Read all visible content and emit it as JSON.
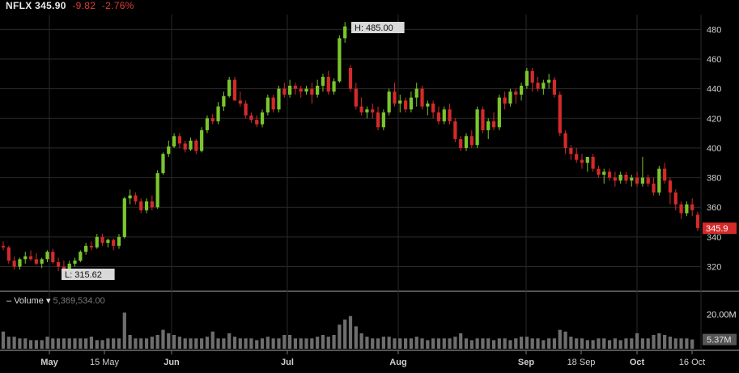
{
  "header": {
    "symbol": "NFLX",
    "price": "345.90",
    "change": "-9.82",
    "change_pct": "-2.76%"
  },
  "volume_header": {
    "label": "Volume",
    "value": "5,369,534.00"
  },
  "colors": {
    "up": "#7bc62d",
    "down": "#d42a2a",
    "grid": "#2a2a2a",
    "volume": "#6e6e6e",
    "label_bg": "#d9d9d9",
    "last_bg": "#d42a2a"
  },
  "chart_data": {
    "type": "candlestick",
    "ylim": [
      305,
      490
    ],
    "y_ticks": [
      "320",
      "340",
      "360",
      "380",
      "400",
      "420",
      "440",
      "460",
      "480"
    ],
    "x_ticks": [
      "May",
      "15 May",
      "Jun",
      "Jul",
      "Aug",
      "Sep",
      "18 Sep",
      "Oct",
      "16 Oct"
    ],
    "high_label": "H: 485.00",
    "low_label": "L: 315.62",
    "last_label": "345.9",
    "volume_ylim": [
      0,
      24000000
    ],
    "volume_ticks": [
      "20.00M",
      "5.37M"
    ],
    "candles": [
      [
        334,
        337,
        331,
        333
      ],
      [
        333,
        334,
        322,
        324
      ],
      [
        324,
        327,
        318,
        320
      ],
      [
        320,
        326,
        318,
        325
      ],
      [
        325,
        330,
        322,
        327
      ],
      [
        327,
        331,
        324,
        325
      ],
      [
        325,
        329,
        321,
        322
      ],
      [
        322,
        326,
        319,
        325
      ],
      [
        325,
        331,
        323,
        330
      ],
      [
        330,
        332,
        322,
        323
      ],
      [
        323,
        326,
        317,
        320
      ],
      [
        320,
        324,
        316,
        318
      ],
      [
        318,
        324,
        317,
        322
      ],
      [
        322,
        326,
        320,
        324
      ],
      [
        324,
        331,
        323,
        330
      ],
      [
        330,
        336,
        328,
        334
      ],
      [
        334,
        337,
        331,
        333
      ],
      [
        333,
        342,
        332,
        340
      ],
      [
        340,
        342,
        334,
        336
      ],
      [
        336,
        339,
        333,
        338
      ],
      [
        338,
        339,
        331,
        334
      ],
      [
        334,
        342,
        332,
        340
      ],
      [
        340,
        367,
        339,
        366
      ],
      [
        366,
        372,
        362,
        368
      ],
      [
        368,
        370,
        362,
        364
      ],
      [
        364,
        366,
        356,
        358
      ],
      [
        358,
        366,
        356,
        364
      ],
      [
        364,
        368,
        358,
        360
      ],
      [
        360,
        385,
        359,
        383
      ],
      [
        383,
        397,
        382,
        396
      ],
      [
        396,
        405,
        394,
        401
      ],
      [
        401,
        410,
        400,
        408
      ],
      [
        408,
        410,
        400,
        403
      ],
      [
        403,
        405,
        397,
        399
      ],
      [
        399,
        407,
        398,
        405
      ],
      [
        405,
        406,
        396,
        398
      ],
      [
        398,
        414,
        397,
        412
      ],
      [
        412,
        422,
        410,
        420
      ],
      [
        420,
        423,
        416,
        418
      ],
      [
        418,
        431,
        416,
        428
      ],
      [
        428,
        438,
        425,
        435
      ],
      [
        435,
        448,
        434,
        446
      ],
      [
        446,
        448,
        432,
        432
      ],
      [
        432,
        438,
        428,
        430
      ],
      [
        430,
        432,
        420,
        422
      ],
      [
        422,
        424,
        417,
        419
      ],
      [
        419,
        422,
        414,
        416
      ],
      [
        416,
        426,
        414,
        424
      ],
      [
        424,
        436,
        422,
        434
      ],
      [
        434,
        436,
        424,
        426
      ],
      [
        426,
        442,
        424,
        440
      ],
      [
        440,
        444,
        434,
        436
      ],
      [
        436,
        446,
        434,
        442
      ],
      [
        442,
        444,
        436,
        440
      ],
      [
        440,
        442,
        434,
        438
      ],
      [
        438,
        442,
        436,
        440
      ],
      [
        440,
        444,
        430,
        436
      ],
      [
        436,
        446,
        434,
        442
      ],
      [
        442,
        450,
        438,
        448
      ],
      [
        448,
        452,
        436,
        438
      ],
      [
        438,
        447,
        436,
        445
      ],
      [
        445,
        476,
        444,
        474
      ],
      [
        474,
        485,
        471,
        482
      ],
      [
        454,
        456,
        438,
        440
      ],
      [
        440,
        444,
        426,
        428
      ],
      [
        428,
        434,
        422,
        424
      ],
      [
        424,
        428,
        420,
        426
      ],
      [
        426,
        430,
        420,
        424
      ],
      [
        424,
        428,
        412,
        414
      ],
      [
        414,
        426,
        412,
        424
      ],
      [
        424,
        440,
        422,
        438
      ],
      [
        438,
        444,
        428,
        430
      ],
      [
        430,
        436,
        424,
        432
      ],
      [
        432,
        434,
        424,
        426
      ],
      [
        426,
        438,
        424,
        434
      ],
      [
        434,
        444,
        428,
        440
      ],
      [
        440,
        442,
        426,
        428
      ],
      [
        428,
        432,
        422,
        430
      ],
      [
        430,
        432,
        420,
        424
      ],
      [
        424,
        428,
        416,
        418
      ],
      [
        418,
        428,
        416,
        426
      ],
      [
        426,
        430,
        416,
        418
      ],
      [
        418,
        420,
        404,
        406
      ],
      [
        406,
        408,
        398,
        400
      ],
      [
        400,
        410,
        398,
        408
      ],
      [
        408,
        412,
        400,
        402
      ],
      [
        402,
        428,
        400,
        426
      ],
      [
        426,
        428,
        410,
        412
      ],
      [
        412,
        420,
        406,
        418
      ],
      [
        418,
        424,
        412,
        414
      ],
      [
        414,
        436,
        412,
        434
      ],
      [
        434,
        438,
        426,
        430
      ],
      [
        430,
        440,
        428,
        438
      ],
      [
        438,
        440,
        430,
        436
      ],
      [
        436,
        444,
        432,
        442
      ],
      [
        442,
        454,
        440,
        452
      ],
      [
        452,
        454,
        438,
        444
      ],
      [
        444,
        448,
        438,
        440
      ],
      [
        440,
        446,
        436,
        444
      ],
      [
        444,
        450,
        440,
        446
      ],
      [
        446,
        448,
        434,
        436
      ],
      [
        436,
        438,
        408,
        410
      ],
      [
        410,
        412,
        396,
        400
      ],
      [
        400,
        402,
        392,
        396
      ],
      [
        396,
        400,
        390,
        392
      ],
      [
        392,
        396,
        386,
        390
      ],
      [
        390,
        394,
        384,
        394
      ],
      [
        394,
        396,
        384,
        386
      ],
      [
        386,
        388,
        380,
        382
      ],
      [
        382,
        386,
        376,
        384
      ],
      [
        384,
        386,
        378,
        380
      ],
      [
        380,
        384,
        374,
        378
      ],
      [
        378,
        384,
        376,
        382
      ],
      [
        382,
        384,
        376,
        378
      ],
      [
        378,
        382,
        374,
        380
      ],
      [
        380,
        384,
        374,
        376
      ],
      [
        376,
        394,
        374,
        380
      ],
      [
        380,
        382,
        374,
        376
      ],
      [
        376,
        380,
        368,
        370
      ],
      [
        370,
        388,
        368,
        386
      ],
      [
        386,
        390,
        376,
        378
      ],
      [
        378,
        380,
        362,
        370
      ],
      [
        370,
        372,
        358,
        362
      ],
      [
        362,
        364,
        352,
        356
      ],
      [
        356,
        364,
        354,
        362
      ],
      [
        362,
        366,
        354,
        358
      ],
      [
        355,
        357,
        344,
        346
      ]
    ],
    "volumes": [
      10,
      7,
      7,
      6,
      6,
      5,
      5,
      5,
      7,
      6,
      6,
      6,
      6,
      6,
      6,
      6,
      7,
      5,
      5,
      6,
      6,
      6,
      21,
      8,
      6,
      6,
      6,
      7,
      8,
      11,
      9,
      8,
      7,
      6,
      6,
      6,
      6,
      7,
      10,
      6,
      6,
      9,
      7,
      6,
      6,
      6,
      5,
      6,
      7,
      6,
      6,
      8,
      8,
      6,
      6,
      6,
      6,
      7,
      8,
      7,
      8,
      14,
      17,
      19,
      13,
      9,
      7,
      6,
      6,
      7,
      7,
      6,
      6,
      6,
      6,
      7,
      6,
      5,
      6,
      6,
      6,
      6,
      7,
      9,
      6,
      5,
      6,
      6,
      6,
      5,
      6,
      6,
      5,
      6,
      7,
      7,
      6,
      6,
      5,
      6,
      6,
      11,
      10,
      7,
      6,
      6,
      5,
      5,
      6,
      6,
      5,
      6,
      5,
      6,
      6,
      9,
      6,
      6,
      8,
      9,
      8,
      7,
      6,
      6,
      6,
      5.37
    ]
  }
}
